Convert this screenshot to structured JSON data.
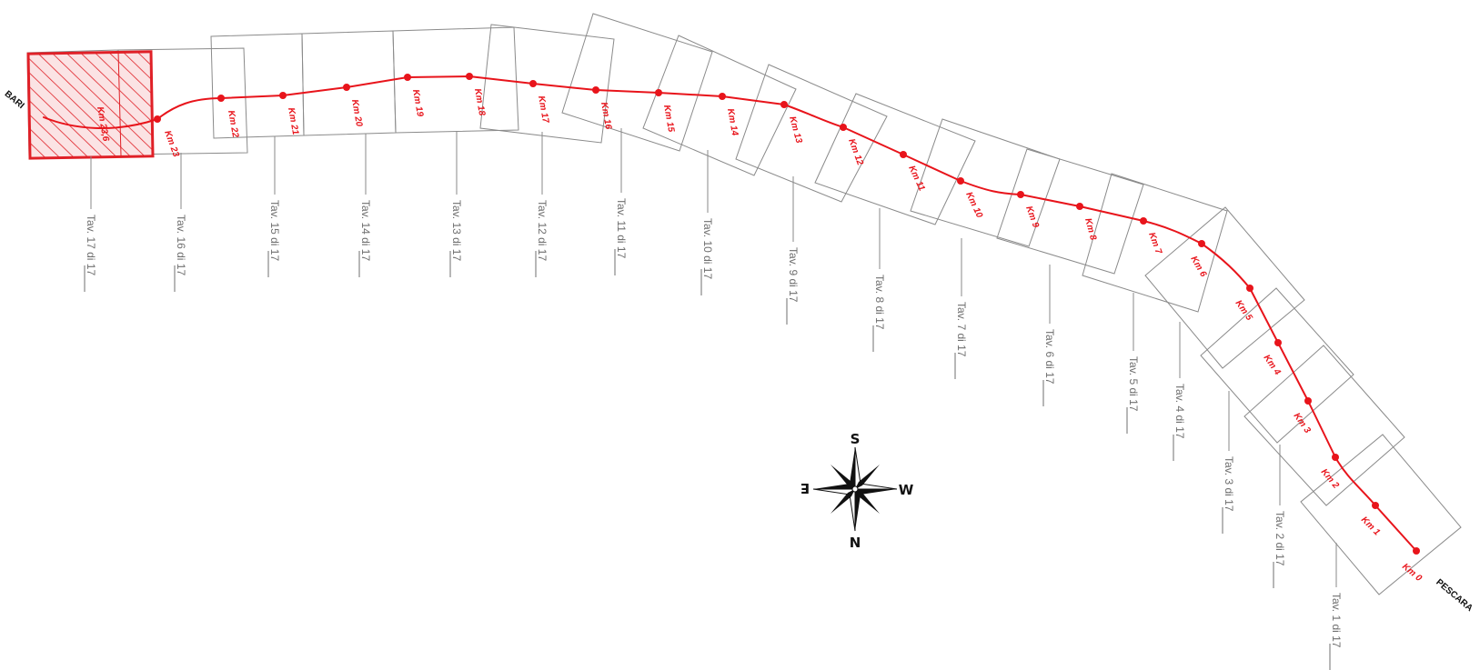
{
  "colors": {
    "route": "#e8141b",
    "sheet_outline": "#8a8a8a",
    "label_gray": "#6f6f6f",
    "highlight": "#e02027",
    "compass": "#111111"
  },
  "endpoints": {
    "west": "BARI",
    "east": "PESCARA"
  },
  "compass": {
    "top": "S",
    "bottom": "N",
    "left": "E",
    "right": "W",
    "icon": "compass-rose-icon"
  },
  "km_markers": [
    "Km 23,6",
    "Km 23",
    "Km 22",
    "Km 21",
    "Km 20",
    "Km 19",
    "Km 18",
    "Km 17",
    "Km 16",
    "Km 15",
    "Km 14",
    "Km 13",
    "Km 12",
    "Km 11",
    "Km 10",
    "Km 9",
    "Km 8",
    "Km 7",
    "Km 6",
    "Km 5",
    "Km 4",
    "Km 3",
    "Km 2",
    "Km 1",
    "Km 0"
  ],
  "tavole": [
    "Tav. 17 di 17",
    "Tav. 16 di 17",
    "Tav. 15 di 17",
    "Tav. 14 di 17",
    "Tav. 13 di 17",
    "Tav. 12 di 17",
    "Tav. 11 di 17",
    "Tav. 10 di 17",
    "Tav. 9 di 17",
    "Tav. 8 di 17",
    "Tav. 7 di 17",
    "Tav. 6 di 17",
    "Tav. 5 di 17",
    "Tav. 4 di 17",
    "Tav. 3 di 17",
    "Tav. 2 di 17",
    "Tav. 1 di 17"
  ],
  "highlighted_sheet": "Tav. 17 di 17"
}
